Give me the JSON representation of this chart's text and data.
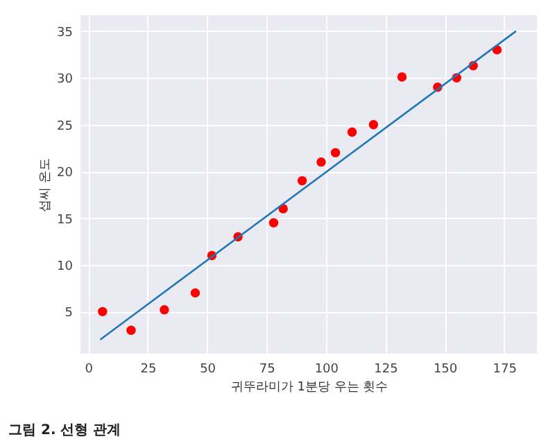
{
  "chart_data": {
    "type": "scatter",
    "title": "그림 2. 선형 관계",
    "xlabel": "귀뚜라미가 1분당 우는 횟수",
    "ylabel": "섭씨 온도",
    "xlim": [
      -3.3,
      188.8
    ],
    "xticks": [
      0,
      25,
      50,
      75,
      100,
      125,
      150,
      175
    ],
    "ylim": [
      0.5,
      36.7
    ],
    "yticks": [
      5,
      10,
      15,
      20,
      25,
      30,
      35
    ],
    "grid": true,
    "series": [
      {
        "color": "#ff0000",
        "marker": "circle",
        "x": [
          6,
          18,
          32,
          45,
          52,
          63,
          78,
          82,
          90,
          98,
          104,
          111,
          120,
          132,
          147,
          155,
          162,
          172
        ],
        "values": [
          5,
          3,
          5.2,
          7,
          11,
          13,
          14.5,
          16,
          19,
          21,
          22,
          24.2,
          25,
          30.1,
          29,
          30,
          31.3,
          33
        ]
      },
      {
        "type": "line",
        "color": "#1f77b4",
        "x": [
          5,
          180
        ],
        "values": [
          2,
          35
        ]
      }
    ]
  }
}
